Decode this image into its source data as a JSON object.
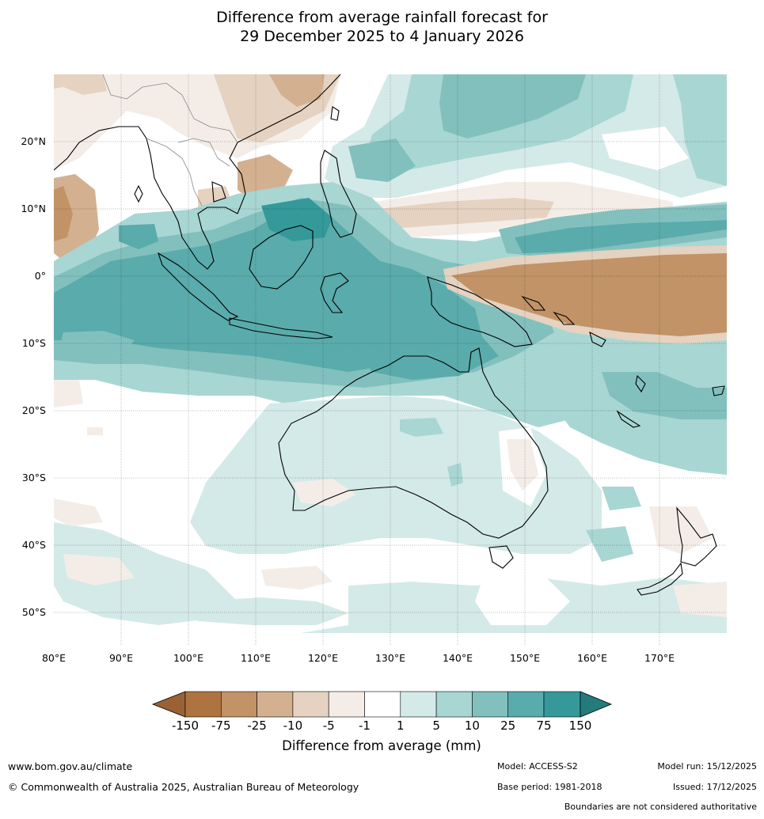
{
  "title": {
    "line1": "Difference from average rainfall forecast for",
    "line2": "29 December 2025 to 4 January 2026"
  },
  "axes": {
    "lon_labels": [
      "80°E",
      "90°E",
      "100°E",
      "110°E",
      "120°E",
      "130°E",
      "140°E",
      "150°E",
      "160°E",
      "170°E"
    ],
    "lat_labels": [
      "20°N",
      "10°N",
      "0°",
      "10°S",
      "20°S",
      "30°S",
      "40°S",
      "50°S"
    ]
  },
  "legend": {
    "title": "Difference from average (mm)",
    "ticks": [
      "-150",
      "-75",
      "-25",
      "-10",
      "-5",
      "-1",
      "1",
      "5",
      "10",
      "25",
      "75",
      "150"
    ],
    "colors": [
      "#9a6234",
      "#ad743f",
      "#c29367",
      "#d3b190",
      "#e5d2c0",
      "#f4ede7",
      "#ffffff",
      "#d4eae8",
      "#a8d6d3",
      "#82c0be",
      "#5aabab",
      "#35999a",
      "#247b7c"
    ]
  },
  "footer": {
    "url": "www.bom.gov.au/climate",
    "copyright": "© Commonwealth of Australia 2025, Australian Bureau of Meteorology",
    "model": "Model: ACCESS-S2",
    "base_period": "Base period: 1981-2018",
    "model_run": "Model run: 15/12/2025",
    "issued": "Issued: 17/12/2025",
    "disclaimer": "Boundaries are not considered authoritative"
  }
}
